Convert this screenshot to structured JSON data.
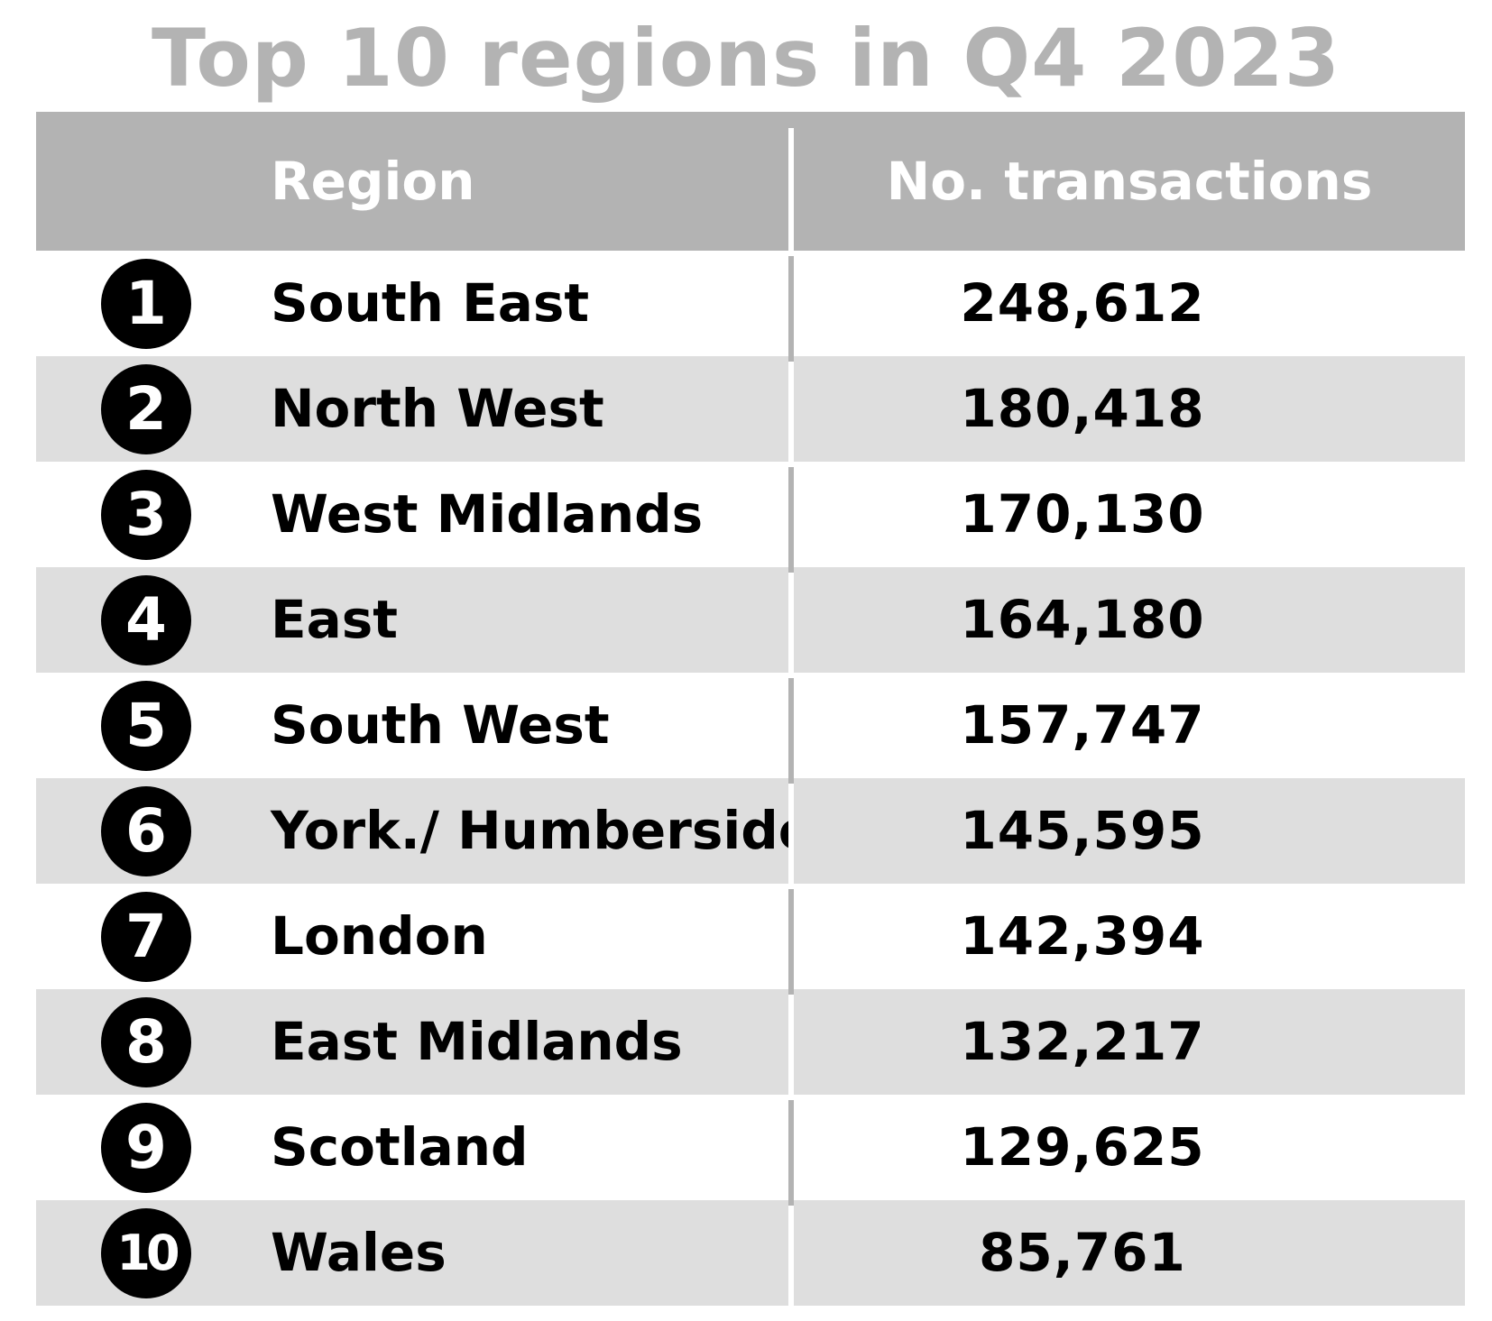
{
  "chart_data": {
    "type": "table",
    "title": "Top 10 regions in Q4 2023",
    "columns": [
      "Region",
      "No. transactions"
    ],
    "rows": [
      {
        "rank": "1",
        "region": "South East",
        "value": "248,612"
      },
      {
        "rank": "2",
        "region": "North West",
        "value": "180,418"
      },
      {
        "rank": "3",
        "region": "West Midlands",
        "value": "170,130"
      },
      {
        "rank": "4",
        "region": "East",
        "value": "164,180"
      },
      {
        "rank": "5",
        "region": "South West",
        "value": "157,747"
      },
      {
        "rank": "6",
        "region": "York./ Humberside",
        "value": "145,595"
      },
      {
        "rank": "7",
        "region": "London",
        "value": "142,394"
      },
      {
        "rank": "8",
        "region": "East Midlands",
        "value": "132,217"
      },
      {
        "rank": "9",
        "region": "Scotland",
        "value": "129,625"
      },
      {
        "rank": "10",
        "region": "Wales",
        "value": "85,761"
      }
    ]
  },
  "colors": {
    "title": "#b3b3b3",
    "header_bg": "#b3b3b3",
    "header_text": "#ffffff",
    "shaded_row": "#dedede",
    "badge": "#000000"
  }
}
